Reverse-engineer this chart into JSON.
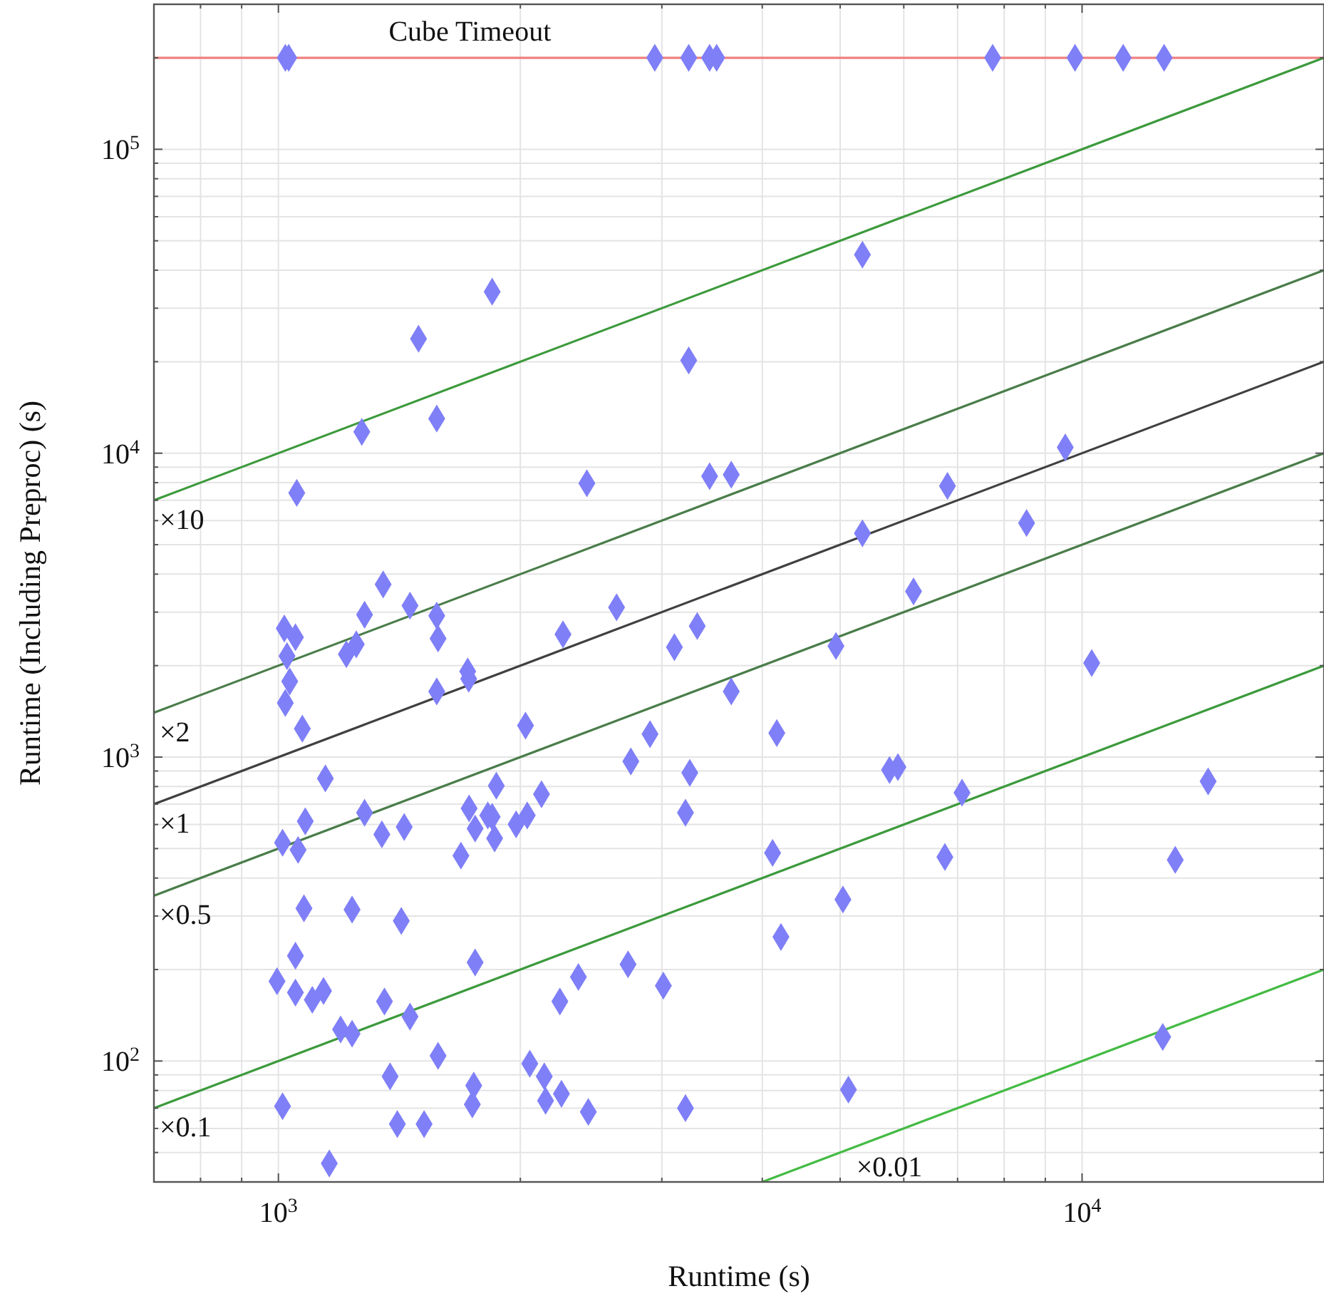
{
  "chart_data": {
    "type": "scatter",
    "xlabel": "Runtime (s)",
    "ylabel": "Runtime (Including Preproc) (s)",
    "log": "xy",
    "grid": true,
    "xlim": [
      700,
      20000
    ],
    "ylim": [
      40,
      300000
    ],
    "xticks": [
      {
        "value": 700,
        "label": null
      },
      {
        "value": 800,
        "label": null
      },
      {
        "value": 900,
        "label": null
      },
      {
        "value": 1000,
        "label": "10$^{3}$"
      },
      {
        "value": 2000,
        "label": null
      },
      {
        "value": 3000,
        "label": null
      },
      {
        "value": 4000,
        "label": null
      },
      {
        "value": 5000,
        "label": null
      },
      {
        "value": 6000,
        "label": null
      },
      {
        "value": 7000,
        "label": null
      },
      {
        "value": 8000,
        "label": null
      },
      {
        "value": 9000,
        "label": null
      },
      {
        "value": 10000,
        "label": "10$^{4}$"
      },
      {
        "value": 20000,
        "label": null
      }
    ],
    "yticks": [
      {
        "value": 40,
        "label": null
      },
      {
        "value": 50,
        "label": null
      },
      {
        "value": 60,
        "label": null
      },
      {
        "value": 70,
        "label": null
      },
      {
        "value": 80,
        "label": null
      },
      {
        "value": 90,
        "label": null
      },
      {
        "value": 100,
        "label": "10$^{2}$"
      },
      {
        "value": 200,
        "label": null
      },
      {
        "value": 300,
        "label": null
      },
      {
        "value": 400,
        "label": null
      },
      {
        "value": 500,
        "label": null
      },
      {
        "value": 600,
        "label": null
      },
      {
        "value": 700,
        "label": null
      },
      {
        "value": 800,
        "label": null
      },
      {
        "value": 900,
        "label": null
      },
      {
        "value": 1000,
        "label": "10$^{3}$"
      },
      {
        "value": 2000,
        "label": null
      },
      {
        "value": 3000,
        "label": null
      },
      {
        "value": 4000,
        "label": null
      },
      {
        "value": 5000,
        "label": null
      },
      {
        "value": 6000,
        "label": null
      },
      {
        "value": 7000,
        "label": null
      },
      {
        "value": 8000,
        "label": null
      },
      {
        "value": 9000,
        "label": null
      },
      {
        "value": 10000,
        "label": "10$^{4}$"
      },
      {
        "value": 20000,
        "label": null
      },
      {
        "value": 30000,
        "label": null
      },
      {
        "value": 40000,
        "label": null
      },
      {
        "value": 50000,
        "label": null
      },
      {
        "value": 60000,
        "label": null
      },
      {
        "value": 70000,
        "label": null
      },
      {
        "value": 80000,
        "label": null
      },
      {
        "value": 90000,
        "label": null
      },
      {
        "value": 100000,
        "label": "10$^{5}$"
      },
      {
        "value": 200000,
        "label": null
      },
      {
        "value": 300000,
        "label": null
      }
    ],
    "ref_lines": [
      {
        "axis": "y",
        "value": 200000,
        "label": "Cube Timeout",
        "color": "#f08080"
      }
    ],
    "series": [
      {
        "name": "×10",
        "type": "line",
        "color": "#3c9a3c",
        "x": [
          700,
          20000
        ],
        "values": [
          7000,
          200000
        ]
      },
      {
        "name": "×2",
        "type": "line",
        "color": "#4a7d4a",
        "x": [
          700,
          20000
        ],
        "values": [
          1400,
          40000
        ]
      },
      {
        "name": "×1",
        "type": "line",
        "color": "#404040",
        "x": [
          700,
          20000
        ],
        "values": [
          700,
          20000
        ]
      },
      {
        "name": "×0.5",
        "type": "line",
        "color": "#4a7d4a",
        "x": [
          700,
          20000
        ],
        "values": [
          350,
          10000
        ]
      },
      {
        "name": "×0.1",
        "type": "line",
        "color": "#3c9a3c",
        "x": [
          700,
          20000
        ],
        "values": [
          70,
          2000
        ]
      },
      {
        "name": "×0.01",
        "type": "line",
        "color": "#44bb44",
        "x": [
          4000,
          20000
        ],
        "values": [
          40,
          200
        ]
      },
      {
        "marker": "diamond",
        "color": "#7f7ff8",
        "x": [
          1020,
          1030,
          2940,
          3240,
          3440,
          3510,
          7740,
          9800,
          11250,
          12650,
          5330,
          1845,
          1494,
          3240,
          1574,
          1270,
          9530,
          1054,
          2420,
          3440,
          3660,
          6800,
          8530,
          5330,
          6170,
          1350,
          1280,
          1458,
          1574,
          1580,
          1017,
          1050,
          1025,
          1250,
          1215,
          2635,
          2260,
          3110,
          3320,
          3660,
          1574,
          1720,
          1725,
          2030,
          2900,
          2745,
          3250,
          3210,
          1033,
          1020,
          1071,
          1144,
          1280,
          1080,
          1012,
          1058,
          1345,
          1434,
          1727,
          1757,
          1822,
          1845,
          1867,
          1858,
          1687,
          1976,
          2040,
          2125,
          1076,
          1235,
          1422,
          1757,
          1050,
          996,
          1050,
          1102,
          1138,
          1355,
          1458,
          1195,
          1235,
          2240,
          2362,
          2723,
          3013,
          1580,
          1377,
          1750,
          1743,
          2055,
          2142,
          2150,
          2250,
          2430,
          3210,
          1012,
          1406,
          1518,
          1157,
          4940,
          10280,
          4170,
          5760,
          5900,
          7090,
          14350,
          4120,
          6750,
          13060,
          5040,
          4220,
          12600,
          5120
        ],
        "values": [
          200000,
          200000,
          200000,
          200000,
          200000,
          200000,
          200000,
          200000,
          200000,
          200000,
          45000,
          34000,
          23800,
          20200,
          13000,
          11750,
          10450,
          7400,
          7960,
          8400,
          8500,
          7800,
          5890,
          5450,
          3510,
          3700,
          2940,
          3150,
          2920,
          2455,
          2650,
          2480,
          2150,
          2350,
          2180,
          3110,
          2535,
          2300,
          2700,
          1645,
          1645,
          1915,
          1810,
          1270,
          1190,
          968,
          888,
          656,
          1775,
          1507,
          1240,
          851,
          656,
          615,
          523,
          495,
          557,
          589,
          678,
          582,
          643,
          636,
          805,
          540,
          474,
          601,
          643,
          755,
          318,
          315,
          289,
          211,
          222,
          183,
          168,
          159,
          170,
          157,
          140,
          127,
          123,
          157,
          189,
          208,
          177,
          104,
          89,
          83,
          72,
          98,
          89,
          74,
          78,
          68,
          70,
          71,
          62,
          62,
          46,
          2320,
          2040,
          1200,
          907,
          927,
          764,
          832,
          484,
          469,
          459,
          340,
          256,
          120,
          80.5
        ]
      }
    ]
  }
}
